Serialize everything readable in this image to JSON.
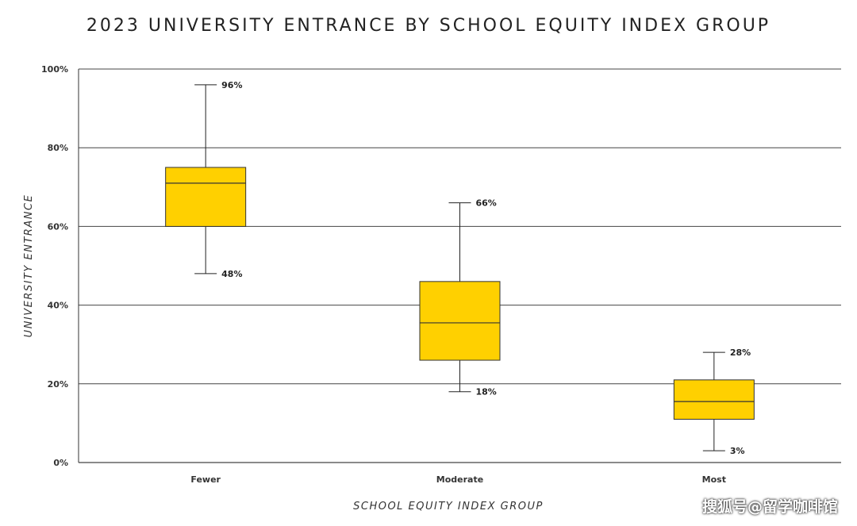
{
  "chart_data": {
    "type": "boxplot",
    "title": "2023 UNIVERSITY ENTRANCE BY SCHOOL EQUITY INDEX GROUP",
    "xlabel": "SCHOOL EQUITY INDEX GROUP",
    "ylabel": "UNIVERSITY ENTRANCE",
    "ylim": [
      0,
      100
    ],
    "yticks": [
      {
        "value": 0,
        "label": "0%"
      },
      {
        "value": 20,
        "label": "20%"
      },
      {
        "value": 40,
        "label": "40%"
      },
      {
        "value": 60,
        "label": "60%"
      },
      {
        "value": 80,
        "label": "80%"
      },
      {
        "value": 100,
        "label": "100%"
      }
    ],
    "grid": true,
    "box_color": "#FFD000",
    "categories": [
      "Fewer",
      "Moderate",
      "Most"
    ],
    "boxes": [
      {
        "category": "Fewer",
        "min": 48,
        "q1": 60,
        "median": 71,
        "q3": 75,
        "max": 96,
        "min_label": "48%",
        "max_label": "96%"
      },
      {
        "category": "Moderate",
        "min": 18,
        "q1": 26,
        "median": 35.5,
        "q3": 46,
        "max": 66,
        "min_label": "18%",
        "max_label": "66%"
      },
      {
        "category": "Most",
        "min": 3,
        "q1": 11,
        "median": 15.5,
        "q3": 21,
        "max": 28,
        "min_label": "3%",
        "max_label": "28%"
      }
    ]
  },
  "watermark": "搜狐号@留学咖啡馆"
}
